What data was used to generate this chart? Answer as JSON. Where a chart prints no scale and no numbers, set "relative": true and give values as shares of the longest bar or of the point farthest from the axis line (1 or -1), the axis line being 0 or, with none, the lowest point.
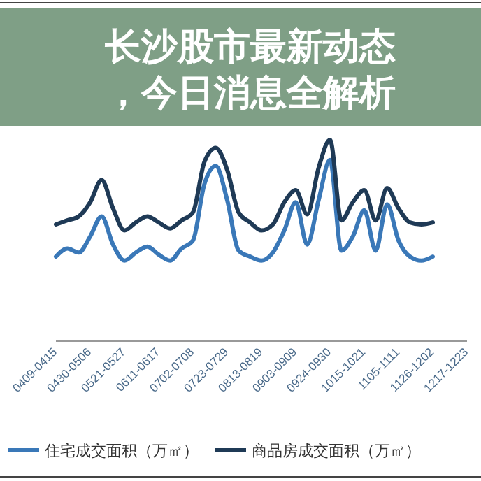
{
  "chart_data": {
    "type": "line",
    "title": "长沙股市最新动态，今日消息全解析",
    "relative": true,
    "legend": "bottom",
    "grid": false,
    "marker": "none",
    "categories": [
      "0409-0415",
      null,
      null,
      "0430-0506",
      null,
      null,
      "0521-0527",
      null,
      null,
      "0611-0617",
      null,
      null,
      "0702-0708",
      null,
      null,
      "0723-0729",
      null,
      null,
      "0813-0819",
      null,
      null,
      "0903-0909",
      null,
      null,
      "0924-0930",
      null,
      null,
      "1015-1021",
      null,
      null,
      "1105-1111",
      null,
      null,
      "1126-1202",
      null,
      null,
      "1217-1223"
    ],
    "series": [
      {
        "name": "住宅成交面积（万㎡）",
        "color": "#3a78b8",
        "values": [
          0.42,
          0.46,
          0.44,
          0.52,
          0.62,
          0.48,
          0.4,
          0.44,
          0.47,
          0.43,
          0.4,
          0.46,
          0.5,
          0.78,
          0.87,
          0.7,
          0.45,
          0.42,
          0.4,
          0.44,
          0.55,
          0.69,
          0.48,
          0.7,
          0.9,
          0.45,
          0.52,
          0.65,
          0.45,
          0.68,
          0.5,
          0.42,
          0.4,
          0.42,
          null,
          null,
          null
        ]
      },
      {
        "name": "商品房成交面积（万㎡）",
        "color": "#1f3a56",
        "values": [
          0.58,
          0.6,
          0.62,
          0.69,
          0.8,
          0.66,
          0.55,
          0.59,
          0.62,
          0.59,
          0.56,
          0.6,
          0.64,
          0.89,
          0.96,
          0.85,
          0.64,
          0.59,
          0.55,
          0.58,
          0.69,
          0.75,
          0.63,
          0.86,
          1,
          0.6,
          0.69,
          0.75,
          0.6,
          0.76,
          0.66,
          0.59,
          0.58,
          0.59,
          null,
          null,
          null
        ]
      }
    ]
  }
}
